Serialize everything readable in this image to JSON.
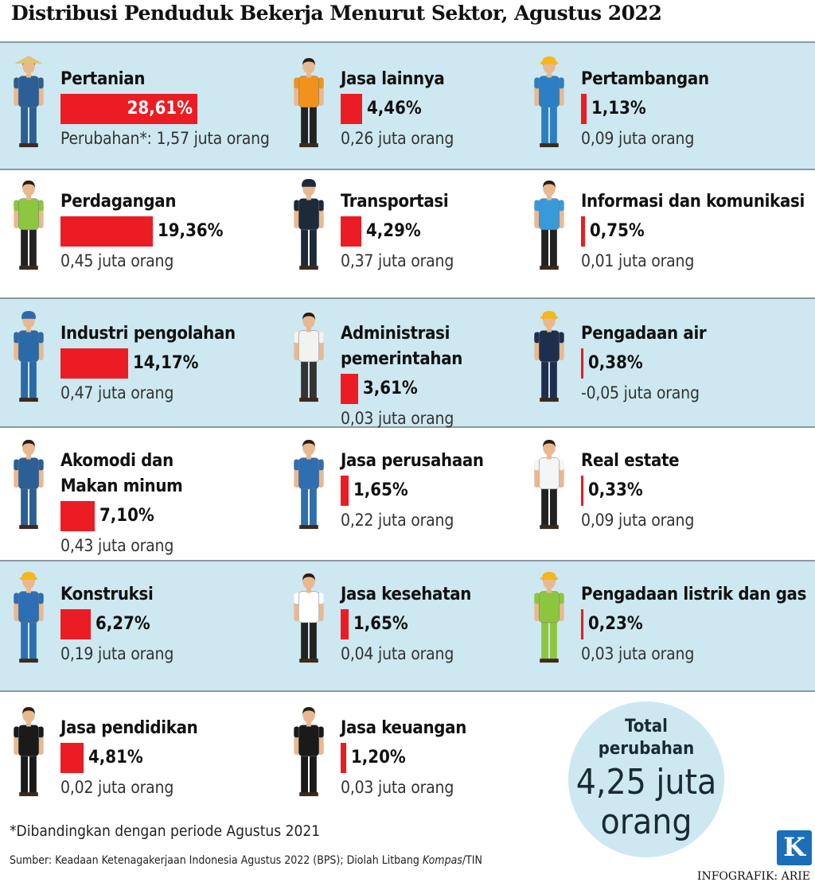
{
  "title": "Distribusi Penduduk Bekerja Menurut Sektor, Agustus 2022",
  "chart_data": {
    "type": "bar",
    "title": "Distribusi Penduduk Bekerja Menurut Sektor, Agustus 2022",
    "unit": "%",
    "categories": [
      "Pertanian",
      "Jasa lainnya",
      "Pertambangan",
      "Perdagangan",
      "Transportasi",
      "Informasi dan komunikasi",
      "Industri pengolahan",
      "Administrasi pemerintahan",
      "Pengadaan air",
      "Akomodi dan Makan minum",
      "Jasa perusahaan",
      "Real estate",
      "Konstruksi",
      "Jasa kesehatan",
      "Pengadaan listrik dan gas",
      "Jasa pendidikan",
      "Jasa keuangan"
    ],
    "values": [
      28.61,
      4.46,
      1.13,
      19.36,
      4.29,
      0.75,
      14.17,
      3.61,
      0.38,
      7.1,
      1.65,
      0.33,
      6.27,
      1.65,
      0.23,
      4.81,
      1.2
    ],
    "change_million": [
      1.57,
      0.26,
      0.09,
      0.45,
      0.37,
      0.01,
      0.47,
      0.03,
      -0.05,
      0.43,
      0.22,
      0.09,
      0.19,
      0.04,
      0.03,
      0.02,
      0.03
    ]
  },
  "sectors": [
    {
      "label_lines": [
        "Pertanian"
      ],
      "pct": "28,61%",
      "change": "Perubahan*: 1,57 juta orang",
      "value": 28.61,
      "fig": {
        "shirt": "#2b5f95",
        "pants": "#2b5f95",
        "hat": "straw",
        "skin": "#e8b990"
      }
    },
    {
      "label_lines": [
        "Jasa lainnya"
      ],
      "pct": "4,46%",
      "change": "0,26 juta orang",
      "value": 4.46,
      "fig": {
        "shirt": "#f0921c",
        "pants": "#222222",
        "hat": "none",
        "skin": "#e8b990"
      }
    },
    {
      "label_lines": [
        "Pertambangan"
      ],
      "pct": "1,13%",
      "change": "0,09 juta orang",
      "value": 1.13,
      "fig": {
        "shirt": "#2c7fc2",
        "pants": "#2c7fc2",
        "hat": "helmet",
        "skin": "#e8b990"
      }
    },
    {
      "label_lines": [
        "Perdagangan"
      ],
      "pct": "19,36%",
      "change": "0,45 juta orang",
      "value": 19.36,
      "fig": {
        "shirt": "#8dc63f",
        "pants": "#222222",
        "hat": "none",
        "skin": "#e8b990"
      }
    },
    {
      "label_lines": [
        "Transportasi"
      ],
      "pct": "4,29%",
      "change": "0,37 juta orang",
      "value": 4.29,
      "fig": {
        "shirt": "#1e2a3a",
        "pants": "#1e2a3a",
        "hat": "cap",
        "skin": "#e8b990"
      }
    },
    {
      "label_lines": [
        "Informasi dan komunikasi"
      ],
      "pct": "0,75%",
      "change": "0,01 juta orang",
      "value": 0.75,
      "fig": {
        "shirt": "#3a9ad9",
        "pants": "#222222",
        "hat": "none",
        "skin": "#e8b990"
      }
    },
    {
      "label_lines": [
        "Industri pengolahan"
      ],
      "pct": "14,17%",
      "change": "0,47 juta orang",
      "value": 14.17,
      "fig": {
        "shirt": "#2b6aa8",
        "pants": "#2b6aa8",
        "hat": "cap",
        "skin": "#e8b990"
      }
    },
    {
      "label_lines": [
        "Administrasi",
        "pemerintahan"
      ],
      "pct": "3,61%",
      "change": "0,03 juta orang",
      "value": 3.61,
      "fig": {
        "shirt": "#f2f2f2",
        "pants": "#333333",
        "hat": "none",
        "skin": "#e8b990"
      }
    },
    {
      "label_lines": [
        "Pengadaan air"
      ],
      "pct": "0,38%",
      "change": "-0,05 juta orang",
      "value": 0.38,
      "fig": {
        "shirt": "#1e2f4d",
        "pants": "#1e2f4d",
        "hat": "helmet",
        "skin": "#e8b990"
      }
    },
    {
      "label_lines": [
        "Akomodi dan",
        "Makan minum"
      ],
      "pct": "7,10%",
      "change": "0,43 juta orang",
      "value": 7.1,
      "fig": {
        "shirt": "#2b5f95",
        "pants": "#2b5f95",
        "hat": "none",
        "skin": "#e8b990"
      }
    },
    {
      "label_lines": [
        "Jasa perusahaan"
      ],
      "pct": "1,65%",
      "change": "0,22 juta orang",
      "value": 1.65,
      "fig": {
        "shirt": "#2f6fb0",
        "pants": "#2f6fb0",
        "hat": "none",
        "skin": "#e8b990"
      }
    },
    {
      "label_lines": [
        "Real estate"
      ],
      "pct": "0,33%",
      "change": "0,09 juta orang",
      "value": 0.33,
      "fig": {
        "shirt": "#f5f5f5",
        "pants": "#222222",
        "hat": "none",
        "skin": "#e8b990"
      }
    },
    {
      "label_lines": [
        "Konstruksi"
      ],
      "pct": "6,27%",
      "change": "0,19 juta orang",
      "value": 6.27,
      "fig": {
        "shirt": "#2c6fb5",
        "pants": "#2c6fb5",
        "hat": "helmet",
        "skin": "#e8b990"
      }
    },
    {
      "label_lines": [
        "Jasa kesehatan"
      ],
      "pct": "1,65%",
      "change": "0,04 juta orang",
      "value": 1.65,
      "fig": {
        "shirt": "#ffffff",
        "pants": "#222222",
        "hat": "none",
        "skin": "#e8b990"
      }
    },
    {
      "label_lines": [
        "Pengadaan listrik dan gas"
      ],
      "pct": "0,23%",
      "change": "0,03 juta orang",
      "value": 0.23,
      "fig": {
        "shirt": "#8cc63f",
        "pants": "#8cc63f",
        "hat": "helmet",
        "skin": "#e8b990"
      }
    },
    {
      "label_lines": [
        "Jasa pendidikan"
      ],
      "pct": "4,81%",
      "change": "0,02 juta orang",
      "value": 4.81,
      "fig": {
        "shirt": "#1a1a1a",
        "pants": "#1a1a1a",
        "hat": "none",
        "skin": "#e8b990"
      }
    },
    {
      "label_lines": [
        "Jasa keuangan"
      ],
      "pct": "1,20%",
      "change": "0,03 juta orang",
      "value": 1.2,
      "fig": {
        "shirt": "#1a1a1a",
        "pants": "#1a1a1a",
        "hat": "none",
        "skin": "#e8b990"
      }
    }
  ],
  "total": {
    "line1": "Total",
    "line2": "perubahan",
    "line3": "4,25 juta",
    "line4": "orang"
  },
  "note": "*Dibandingkan dengan periode Agustus 2021",
  "source_prefix": "Sumber: Keadaan Ketenagakerjaan Indonesia Agustus 2022 (BPS); Diolah Litbang ",
  "source_italic": "Kompas",
  "source_suffix": "/TIN",
  "logo": "K",
  "credit": "INFOGRAFIK: ARIE",
  "colors": {
    "bar": "#ec1c24",
    "band": "#cde8f0",
    "logo": "#1b6fb8"
  }
}
